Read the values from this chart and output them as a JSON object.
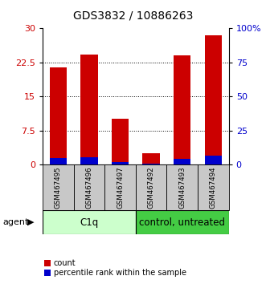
{
  "title": "GDS3832 / 10886263",
  "samples": [
    "GSM467495",
    "GSM467496",
    "GSM467497",
    "GSM467492",
    "GSM467493",
    "GSM467494"
  ],
  "count_values": [
    21.5,
    24.2,
    10.2,
    2.5,
    24.0,
    28.5
  ],
  "percentile_values": [
    5.0,
    5.2,
    1.8,
    0.9,
    4.2,
    6.5
  ],
  "left_ylim": [
    0,
    30
  ],
  "left_yticks": [
    0,
    7.5,
    15,
    22.5,
    30
  ],
  "left_yticklabels": [
    "0",
    "7.5",
    "15",
    "22.5",
    "30"
  ],
  "right_ylim": [
    0,
    100
  ],
  "right_yticks": [
    0,
    25,
    50,
    75,
    100
  ],
  "right_yticklabels": [
    "0",
    "25",
    "50",
    "75",
    "100%"
  ],
  "count_color": "#cc0000",
  "percentile_color": "#0000cc",
  "bar_width": 0.55,
  "group1_label": "C1q",
  "group2_label": "control, untreated",
  "group1_color": "#ccffcc",
  "group2_color": "#44cc44",
  "group1_indices": [
    0,
    1,
    2
  ],
  "group2_indices": [
    3,
    4,
    5
  ],
  "agent_label": "agent",
  "legend_count": "count",
  "legend_percentile": "percentile rank within the sample",
  "title_fontsize": 10,
  "grid_yticks": [
    7.5,
    15,
    22.5
  ],
  "sample_box_color": "#c8c8c8",
  "bg_color": "#ffffff"
}
